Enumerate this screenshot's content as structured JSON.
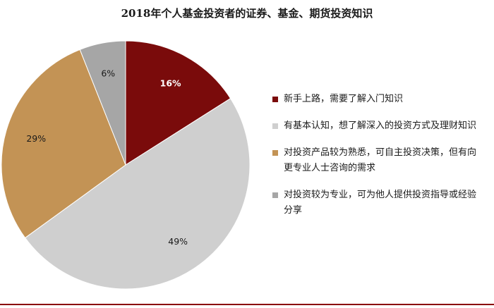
{
  "chart_data": {
    "type": "pie",
    "title": "2018年个人基金投资者的证券、基金、期货投资知识",
    "slices": [
      {
        "label": "新手上路，需要了解入门知识",
        "value": 16,
        "display": "16%",
        "color": "#7a0b0b",
        "label_color": "#ffffff"
      },
      {
        "label": "有基本认知，想了解深入的投资方式及理财知识",
        "value": 49,
        "display": "49%",
        "color": "#cfcfcf",
        "label_color": "#1a1a1a"
      },
      {
        "label": "对投资产品较为熟悉，可自主投资决策，但有向更专业人士咨询的需求",
        "value": 29,
        "display": "29%",
        "color": "#c39355",
        "label_color": "#1a1a1a"
      },
      {
        "label": "对投资较为专业，可为他人提供投资指导或经验分享",
        "value": 6,
        "display": "6%",
        "color": "#a6a6a6",
        "label_color": "#1a1a1a"
      }
    ],
    "legend_position": "right",
    "start_angle": "12 o'clock",
    "direction": "clockwise"
  },
  "colors": {
    "accent_rule": "#8b0000"
  }
}
